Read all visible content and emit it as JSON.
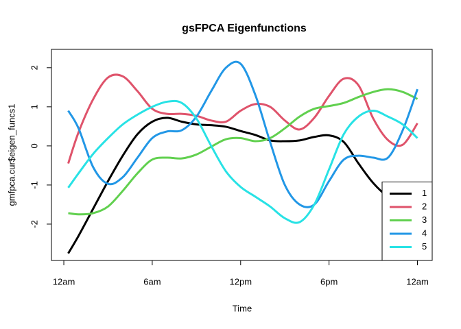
{
  "chart_data": {
    "type": "line",
    "title": "gsFPCA Eigenfunctions",
    "xlabel": "Time",
    "ylabel": "gmfpca.cur$eigen_funcs1",
    "x": [
      0.3,
      1,
      2,
      3,
      4,
      5,
      6,
      7,
      8,
      9,
      10,
      11,
      12,
      13,
      14,
      15,
      16,
      17,
      18,
      19,
      20,
      21,
      22,
      23,
      24
    ],
    "series": [
      {
        "name": "1",
        "color": "#000000",
        "values": [
          -2.75,
          -2.3,
          -1.6,
          -0.9,
          -0.25,
          0.3,
          0.62,
          0.72,
          0.62,
          0.55,
          0.53,
          0.49,
          0.38,
          0.28,
          0.14,
          0.12,
          0.14,
          0.23,
          0.27,
          0.1,
          -0.45,
          -0.95,
          -1.3,
          -1.5,
          -1.7
        ]
      },
      {
        "name": "2",
        "color": "#DF536B",
        "values": [
          -0.45,
          0.35,
          1.2,
          1.75,
          1.78,
          1.4,
          0.95,
          0.82,
          0.82,
          0.77,
          0.65,
          0.62,
          0.9,
          1.07,
          1.0,
          0.65,
          0.42,
          0.72,
          1.28,
          1.72,
          1.55,
          0.7,
          0.15,
          0.03,
          0.58
        ]
      },
      {
        "name": "3",
        "color": "#61D04F",
        "values": [
          -1.72,
          -1.75,
          -1.72,
          -1.55,
          -1.15,
          -0.7,
          -0.35,
          -0.3,
          -0.32,
          -0.22,
          -0.02,
          0.17,
          0.2,
          0.12,
          0.2,
          0.45,
          0.75,
          0.95,
          1.02,
          1.1,
          1.25,
          1.38,
          1.45,
          1.38,
          1.2
        ]
      },
      {
        "name": "4",
        "color": "#2297E6",
        "values": [
          0.9,
          0.45,
          -0.55,
          -0.97,
          -0.8,
          -0.3,
          0.2,
          0.37,
          0.4,
          0.75,
          1.4,
          2.0,
          2.1,
          1.3,
          0.1,
          -1.0,
          -1.5,
          -1.5,
          -0.9,
          -0.35,
          -0.25,
          -0.3,
          -0.3,
          0.4,
          1.45
        ]
      },
      {
        "name": "5",
        "color": "#28E2E5",
        "values": [
          -1.07,
          -0.7,
          -0.2,
          0.2,
          0.55,
          0.8,
          1.0,
          1.13,
          1.1,
          0.7,
          0.0,
          -0.65,
          -1.05,
          -1.3,
          -1.55,
          -1.85,
          -1.95,
          -1.5,
          -0.6,
          0.3,
          0.75,
          0.9,
          0.75,
          0.55,
          0.2
        ]
      }
    ],
    "xlim": [
      -0.84,
      25.0
    ],
    "ylim": [
      -2.93,
      2.47
    ],
    "xticks": [
      {
        "value": 0,
        "label": "12am"
      },
      {
        "value": 6,
        "label": "6am"
      },
      {
        "value": 12,
        "label": "12pm"
      },
      {
        "value": 18,
        "label": "6pm"
      },
      {
        "value": 24,
        "label": "12am"
      }
    ],
    "yticks": [
      -2,
      -1,
      0,
      1,
      2
    ],
    "legend": "bottomright"
  }
}
